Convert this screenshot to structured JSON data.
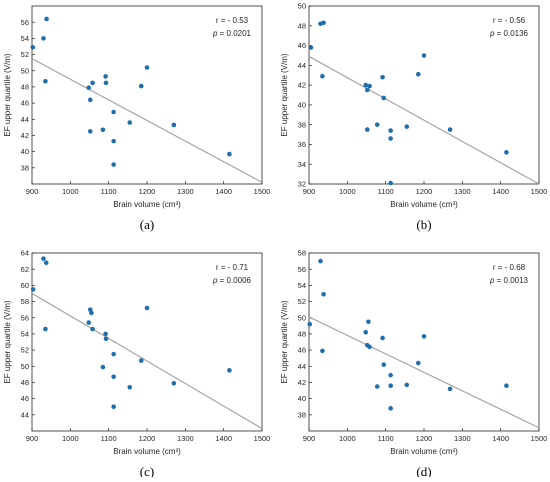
{
  "chart_data": [
    {
      "type": "scatter",
      "panel_label": "(a)",
      "xlabel": "Brain volume (cm³)",
      "ylabel": "EF upper quartile (V/m)",
      "xlim": [
        900,
        1500
      ],
      "ylim": [
        36,
        58
      ],
      "xticks": [
        900,
        1000,
        1100,
        1200,
        1300,
        1400,
        1500
      ],
      "yticks": [
        38,
        40,
        42,
        44,
        46,
        48,
        50,
        52,
        54,
        56
      ],
      "r_text": "r = - 0.53",
      "p_label": "p",
      "p_value": "= 0.0201",
      "points": [
        [
          902,
          52.9
        ],
        [
          930,
          54.0
        ],
        [
          938,
          56.4
        ],
        [
          935,
          48.7
        ],
        [
          1048,
          47.9
        ],
        [
          1052,
          46.4
        ],
        [
          1052,
          42.5
        ],
        [
          1058,
          48.5
        ],
        [
          1085,
          42.7
        ],
        [
          1092,
          49.3
        ],
        [
          1093,
          48.5
        ],
        [
          1113,
          44.9
        ],
        [
          1113,
          41.3
        ],
        [
          1113,
          38.4
        ],
        [
          1155,
          43.6
        ],
        [
          1185,
          48.1
        ],
        [
          1200,
          50.4
        ],
        [
          1270,
          43.3
        ],
        [
          1415,
          39.7
        ]
      ],
      "fit": [
        [
          900,
          51.5
        ],
        [
          1500,
          36.2
        ]
      ],
      "grid": false
    },
    {
      "type": "scatter",
      "panel_label": "(b)",
      "xlabel": "Brain volume (cm³)",
      "ylabel": "EF upper quartile (V/m)",
      "xlim": [
        900,
        1500
      ],
      "ylim": [
        32,
        50
      ],
      "xticks": [
        900,
        1000,
        1100,
        1200,
        1300,
        1400,
        1500
      ],
      "yticks": [
        32,
        34,
        36,
        38,
        40,
        42,
        44,
        46,
        48,
        50
      ],
      "r_text": "r = - 0.56",
      "p_label": "p",
      "p_value": "= 0.0136",
      "points": [
        [
          905,
          45.8
        ],
        [
          930,
          48.2
        ],
        [
          938,
          48.3
        ],
        [
          935,
          42.9
        ],
        [
          1048,
          42.0
        ],
        [
          1052,
          41.5
        ],
        [
          1052,
          37.5
        ],
        [
          1058,
          41.9
        ],
        [
          1078,
          38.0
        ],
        [
          1092,
          42.8
        ],
        [
          1095,
          40.7
        ],
        [
          1113,
          37.4
        ],
        [
          1113,
          36.6
        ],
        [
          1113,
          32.1
        ],
        [
          1155,
          37.8
        ],
        [
          1185,
          43.1
        ],
        [
          1200,
          45.0
        ],
        [
          1268,
          37.5
        ],
        [
          1415,
          35.2
        ]
      ],
      "fit": [
        [
          900,
          44.9
        ],
        [
          1500,
          32.0
        ]
      ],
      "grid": false
    },
    {
      "type": "scatter",
      "panel_label": "(c)",
      "xlabel": "Brain volume (cm³)",
      "ylabel": "EF upper quartile (V/m)",
      "xlim": [
        900,
        1500
      ],
      "ylim": [
        42,
        64
      ],
      "xticks": [
        900,
        1000,
        1100,
        1200,
        1300,
        1400,
        1500
      ],
      "yticks": [
        44,
        46,
        48,
        50,
        52,
        54,
        56,
        58,
        60,
        62,
        64
      ],
      "r_text": "r = - 0.71",
      "p_label": "p",
      "p_value": "= 0.0006",
      "points": [
        [
          903,
          59.5
        ],
        [
          930,
          63.3
        ],
        [
          937,
          62.8
        ],
        [
          935,
          54.6
        ],
        [
          1048,
          55.4
        ],
        [
          1052,
          57.0
        ],
        [
          1055,
          56.6
        ],
        [
          1058,
          54.6
        ],
        [
          1085,
          49.9
        ],
        [
          1092,
          54.0
        ],
        [
          1093,
          53.4
        ],
        [
          1113,
          51.5
        ],
        [
          1113,
          48.7
        ],
        [
          1113,
          45.0
        ],
        [
          1155,
          47.4
        ],
        [
          1185,
          50.7
        ],
        [
          1200,
          57.2
        ],
        [
          1270,
          47.9
        ],
        [
          1415,
          49.5
        ]
      ],
      "fit": [
        [
          900,
          59.0
        ],
        [
          1500,
          42.3
        ]
      ],
      "grid": false
    },
    {
      "type": "scatter",
      "panel_label": "(d)",
      "xlabel": "Brain volume (cm³)",
      "ylabel": "EF upper quartile (V/m)",
      "xlim": [
        900,
        1500
      ],
      "ylim": [
        36,
        58
      ],
      "xticks": [
        900,
        1000,
        1100,
        1200,
        1300,
        1400,
        1500
      ],
      "yticks": [
        38,
        40,
        42,
        44,
        46,
        48,
        50,
        52,
        54,
        56,
        58
      ],
      "r_text": "r = - 0.68",
      "p_label": "p",
      "p_value": "= 0.0013",
      "points": [
        [
          902,
          49.2
        ],
        [
          930,
          57.0
        ],
        [
          938,
          52.9
        ],
        [
          935,
          45.9
        ],
        [
          1048,
          48.2
        ],
        [
          1052,
          46.6
        ],
        [
          1055,
          49.5
        ],
        [
          1058,
          46.4
        ],
        [
          1078,
          41.5
        ],
        [
          1092,
          47.5
        ],
        [
          1095,
          44.2
        ],
        [
          1113,
          42.9
        ],
        [
          1113,
          41.6
        ],
        [
          1113,
          38.8
        ],
        [
          1155,
          41.7
        ],
        [
          1185,
          44.4
        ],
        [
          1200,
          47.7
        ],
        [
          1268,
          41.2
        ],
        [
          1415,
          41.6
        ]
      ],
      "fit": [
        [
          900,
          50.1
        ],
        [
          1500,
          36.4
        ]
      ],
      "grid": false
    }
  ],
  "style": {
    "point_color": "#1f6fad",
    "fit_color": "#a6a6a6",
    "axis_color": "#262626"
  }
}
